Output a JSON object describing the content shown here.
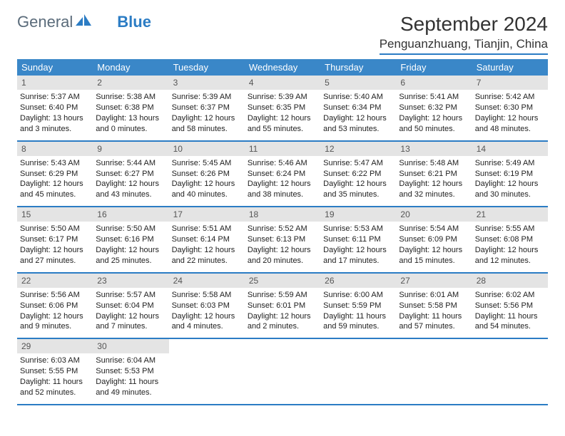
{
  "logo": {
    "word1": "General",
    "word2": "Blue"
  },
  "title": "September 2024",
  "location": "Penguanzhuang, Tianjin, China",
  "colors": {
    "header_bar": "#3a87c8",
    "accent_line": "#2b7cc4",
    "daynum_bg": "#e4e4e4",
    "text": "#222222",
    "logo_gray": "#5a6b7a",
    "logo_blue": "#2b7cc4",
    "background": "#ffffff"
  },
  "weekdays": [
    "Sunday",
    "Monday",
    "Tuesday",
    "Wednesday",
    "Thursday",
    "Friday",
    "Saturday"
  ],
  "weeks": [
    [
      {
        "n": "1",
        "sr": "Sunrise: 5:37 AM",
        "ss": "Sunset: 6:40 PM",
        "dl": "Daylight: 13 hours and 3 minutes."
      },
      {
        "n": "2",
        "sr": "Sunrise: 5:38 AM",
        "ss": "Sunset: 6:38 PM",
        "dl": "Daylight: 13 hours and 0 minutes."
      },
      {
        "n": "3",
        "sr": "Sunrise: 5:39 AM",
        "ss": "Sunset: 6:37 PM",
        "dl": "Daylight: 12 hours and 58 minutes."
      },
      {
        "n": "4",
        "sr": "Sunrise: 5:39 AM",
        "ss": "Sunset: 6:35 PM",
        "dl": "Daylight: 12 hours and 55 minutes."
      },
      {
        "n": "5",
        "sr": "Sunrise: 5:40 AM",
        "ss": "Sunset: 6:34 PM",
        "dl": "Daylight: 12 hours and 53 minutes."
      },
      {
        "n": "6",
        "sr": "Sunrise: 5:41 AM",
        "ss": "Sunset: 6:32 PM",
        "dl": "Daylight: 12 hours and 50 minutes."
      },
      {
        "n": "7",
        "sr": "Sunrise: 5:42 AM",
        "ss": "Sunset: 6:30 PM",
        "dl": "Daylight: 12 hours and 48 minutes."
      }
    ],
    [
      {
        "n": "8",
        "sr": "Sunrise: 5:43 AM",
        "ss": "Sunset: 6:29 PM",
        "dl": "Daylight: 12 hours and 45 minutes."
      },
      {
        "n": "9",
        "sr": "Sunrise: 5:44 AM",
        "ss": "Sunset: 6:27 PM",
        "dl": "Daylight: 12 hours and 43 minutes."
      },
      {
        "n": "10",
        "sr": "Sunrise: 5:45 AM",
        "ss": "Sunset: 6:26 PM",
        "dl": "Daylight: 12 hours and 40 minutes."
      },
      {
        "n": "11",
        "sr": "Sunrise: 5:46 AM",
        "ss": "Sunset: 6:24 PM",
        "dl": "Daylight: 12 hours and 38 minutes."
      },
      {
        "n": "12",
        "sr": "Sunrise: 5:47 AM",
        "ss": "Sunset: 6:22 PM",
        "dl": "Daylight: 12 hours and 35 minutes."
      },
      {
        "n": "13",
        "sr": "Sunrise: 5:48 AM",
        "ss": "Sunset: 6:21 PM",
        "dl": "Daylight: 12 hours and 32 minutes."
      },
      {
        "n": "14",
        "sr": "Sunrise: 5:49 AM",
        "ss": "Sunset: 6:19 PM",
        "dl": "Daylight: 12 hours and 30 minutes."
      }
    ],
    [
      {
        "n": "15",
        "sr": "Sunrise: 5:50 AM",
        "ss": "Sunset: 6:17 PM",
        "dl": "Daylight: 12 hours and 27 minutes."
      },
      {
        "n": "16",
        "sr": "Sunrise: 5:50 AM",
        "ss": "Sunset: 6:16 PM",
        "dl": "Daylight: 12 hours and 25 minutes."
      },
      {
        "n": "17",
        "sr": "Sunrise: 5:51 AM",
        "ss": "Sunset: 6:14 PM",
        "dl": "Daylight: 12 hours and 22 minutes."
      },
      {
        "n": "18",
        "sr": "Sunrise: 5:52 AM",
        "ss": "Sunset: 6:13 PM",
        "dl": "Daylight: 12 hours and 20 minutes."
      },
      {
        "n": "19",
        "sr": "Sunrise: 5:53 AM",
        "ss": "Sunset: 6:11 PM",
        "dl": "Daylight: 12 hours and 17 minutes."
      },
      {
        "n": "20",
        "sr": "Sunrise: 5:54 AM",
        "ss": "Sunset: 6:09 PM",
        "dl": "Daylight: 12 hours and 15 minutes."
      },
      {
        "n": "21",
        "sr": "Sunrise: 5:55 AM",
        "ss": "Sunset: 6:08 PM",
        "dl": "Daylight: 12 hours and 12 minutes."
      }
    ],
    [
      {
        "n": "22",
        "sr": "Sunrise: 5:56 AM",
        "ss": "Sunset: 6:06 PM",
        "dl": "Daylight: 12 hours and 9 minutes."
      },
      {
        "n": "23",
        "sr": "Sunrise: 5:57 AM",
        "ss": "Sunset: 6:04 PM",
        "dl": "Daylight: 12 hours and 7 minutes."
      },
      {
        "n": "24",
        "sr": "Sunrise: 5:58 AM",
        "ss": "Sunset: 6:03 PM",
        "dl": "Daylight: 12 hours and 4 minutes."
      },
      {
        "n": "25",
        "sr": "Sunrise: 5:59 AM",
        "ss": "Sunset: 6:01 PM",
        "dl": "Daylight: 12 hours and 2 minutes."
      },
      {
        "n": "26",
        "sr": "Sunrise: 6:00 AM",
        "ss": "Sunset: 5:59 PM",
        "dl": "Daylight: 11 hours and 59 minutes."
      },
      {
        "n": "27",
        "sr": "Sunrise: 6:01 AM",
        "ss": "Sunset: 5:58 PM",
        "dl": "Daylight: 11 hours and 57 minutes."
      },
      {
        "n": "28",
        "sr": "Sunrise: 6:02 AM",
        "ss": "Sunset: 5:56 PM",
        "dl": "Daylight: 11 hours and 54 minutes."
      }
    ],
    [
      {
        "n": "29",
        "sr": "Sunrise: 6:03 AM",
        "ss": "Sunset: 5:55 PM",
        "dl": "Daylight: 11 hours and 52 minutes."
      },
      {
        "n": "30",
        "sr": "Sunrise: 6:04 AM",
        "ss": "Sunset: 5:53 PM",
        "dl": "Daylight: 11 hours and 49 minutes."
      },
      {
        "empty": true
      },
      {
        "empty": true
      },
      {
        "empty": true
      },
      {
        "empty": true
      },
      {
        "empty": true
      }
    ]
  ]
}
